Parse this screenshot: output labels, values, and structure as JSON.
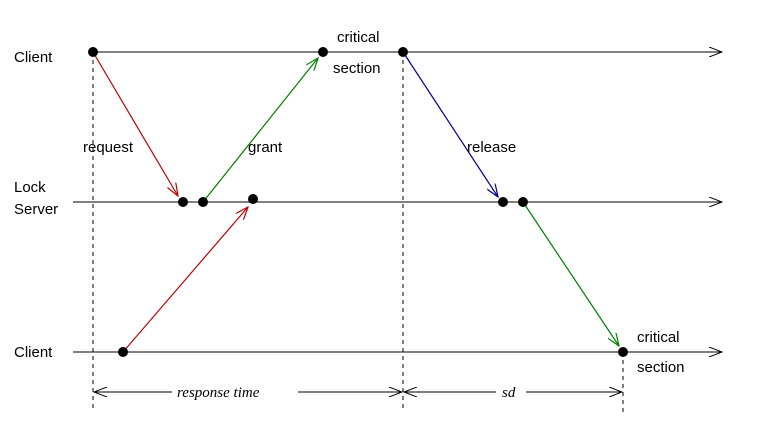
{
  "lanes": {
    "client_top": "Client",
    "lock_server_line1": "Lock",
    "lock_server_line2": "Server",
    "client_bottom": "Client"
  },
  "messages": {
    "request": "request",
    "grant": "grant",
    "release": "release"
  },
  "annotations": {
    "critical_top_line1": "critical",
    "critical_top_line2": "section",
    "critical_bottom_line1": "critical",
    "critical_bottom_line2": "section"
  },
  "intervals": {
    "response_time": "response time",
    "sd": "sd"
  },
  "colors": {
    "request": "#c00000",
    "grant": "#008000",
    "release": "#000090",
    "timeline": "#000000"
  }
}
